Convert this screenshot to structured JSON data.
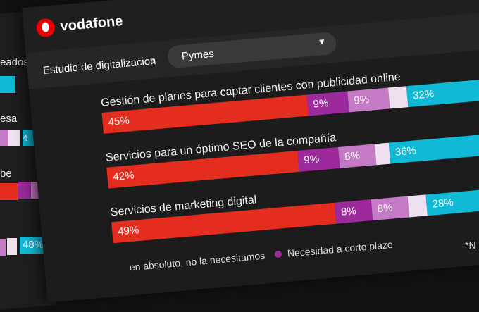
{
  "app": {
    "brand": "vodafone"
  },
  "breadcrumb": {
    "root": "Estudio de digitalizacion",
    "selected": "Pymes"
  },
  "colors": {
    "red": "#e52d1f",
    "purple": "#9c2a9c",
    "lilac": "#c47ac4",
    "pale": "#efe0ef",
    "cyan": "#10b9d6"
  },
  "chart_data": {
    "type": "bar",
    "orientation": "horizontal-stacked",
    "categories": [
      "Gestión de planes para captar clientes con publicidad online",
      "Servicios para un óptimo SEO de la compañía",
      "Servicios de marketing digital"
    ],
    "series": [
      {
        "values": [
          45,
          42,
          49
        ]
      },
      {
        "name": "Necesidad a corto plazo",
        "values": [
          9,
          9,
          8
        ]
      },
      {
        "values": [
          9,
          8,
          8
        ]
      },
      {
        "values": [
          4,
          3,
          4
        ]
      },
      {
        "values": [
          32,
          36,
          28
        ]
      }
    ]
  },
  "rows": [
    {
      "label": "Gestión de planes para captar clientes con publicidad online",
      "v1": "45%",
      "v2": "9%",
      "v3": "9%",
      "v5": "32%"
    },
    {
      "label": "Servicios para un óptimo SEO de la compañía",
      "v1": "42%",
      "v2": "9%",
      "v3": "8%",
      "v5": "36%"
    },
    {
      "label": "Servicios de marketing digital",
      "v1": "49%",
      "v2": "8%",
      "v3": "8%",
      "v5": "28%"
    }
  ],
  "legend": {
    "item_a": "en absoluto, no la necesitamos",
    "item_b": "Necesidad a corto plazo"
  },
  "footnote": "*N",
  "background_panel": {
    "labels": [
      "eados",
      "esa",
      "be"
    ],
    "values": [
      "4",
      "%",
      "48%"
    ]
  }
}
